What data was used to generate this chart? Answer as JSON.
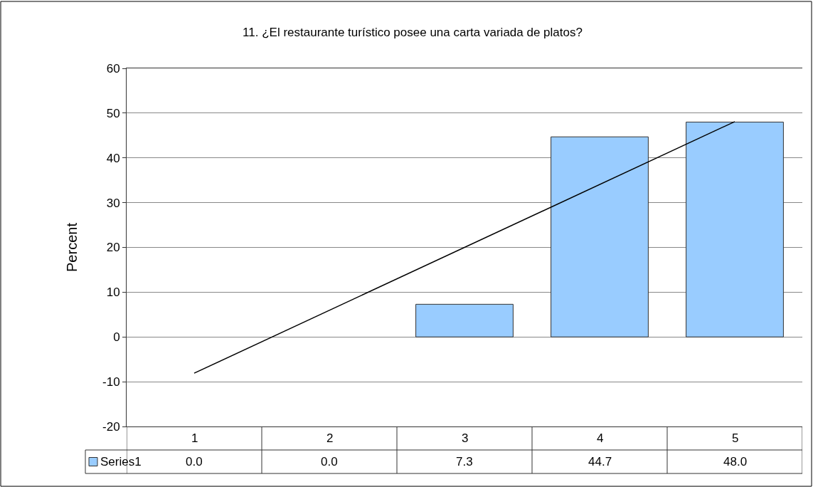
{
  "chart_data": {
    "type": "bar",
    "title": "11. ¿El restaurante turístico posee una carta variada de platos?",
    "ylabel": "Percent",
    "categories": [
      "1",
      "2",
      "3",
      "4",
      "5"
    ],
    "series": [
      {
        "name": "Series1",
        "color": "#99ccff",
        "values": [
          0.0,
          0.0,
          7.3,
          44.7,
          48.0
        ],
        "value_labels": [
          "0.0",
          "0.0",
          "7.3",
          "44.7",
          "48.0"
        ]
      },
      {
        "type": "line",
        "color": "#000000",
        "x": [
          "1",
          "5"
        ],
        "values": [
          -8.1,
          48.1
        ]
      }
    ],
    "ylim": [
      -20,
      60
    ],
    "yticks": [
      -20,
      -10,
      0,
      10,
      20,
      30,
      40,
      50,
      60
    ],
    "grid": "y",
    "marker": "none",
    "line_style": "solid"
  }
}
